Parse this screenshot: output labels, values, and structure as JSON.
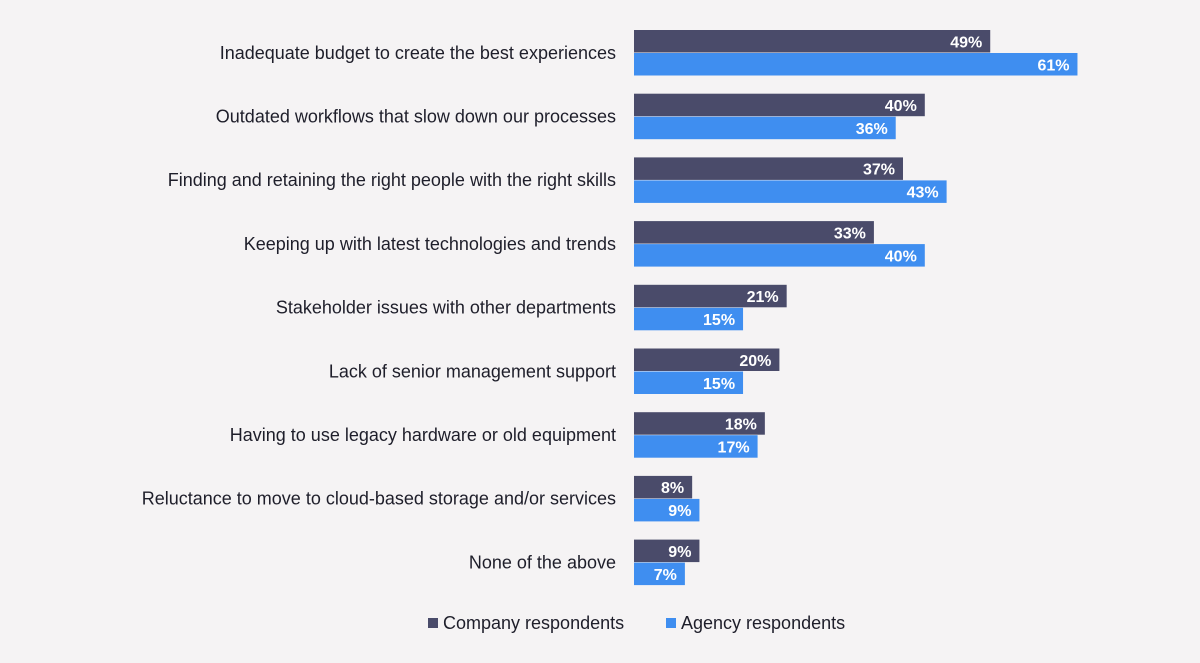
{
  "chart_data": {
    "type": "bar",
    "orientation": "horizontal",
    "title": "",
    "xlabel": "",
    "ylabel": "",
    "xlim": [
      0,
      70
    ],
    "grid": false,
    "legend_position": "bottom",
    "value_suffix": "%",
    "categories": [
      "Inadequate budget to create the best experiences",
      "Outdated workflows that slow down our processes",
      "Finding and retaining the right people with the right skills",
      "Keeping up with latest technologies and trends",
      "Stakeholder issues with other departments",
      "Lack of senior management support",
      "Having to use legacy hardware or old equipment",
      "Reluctance to move to cloud-based storage and/or services",
      "None of the above"
    ],
    "series": [
      {
        "name": "Company respondents",
        "color": "#4a4b6a",
        "values": [
          49,
          40,
          37,
          33,
          21,
          20,
          18,
          8,
          9
        ]
      },
      {
        "name": "Agency respondents",
        "color": "#3f8ef0",
        "values": [
          61,
          36,
          43,
          40,
          15,
          15,
          17,
          9,
          7
        ]
      }
    ]
  }
}
